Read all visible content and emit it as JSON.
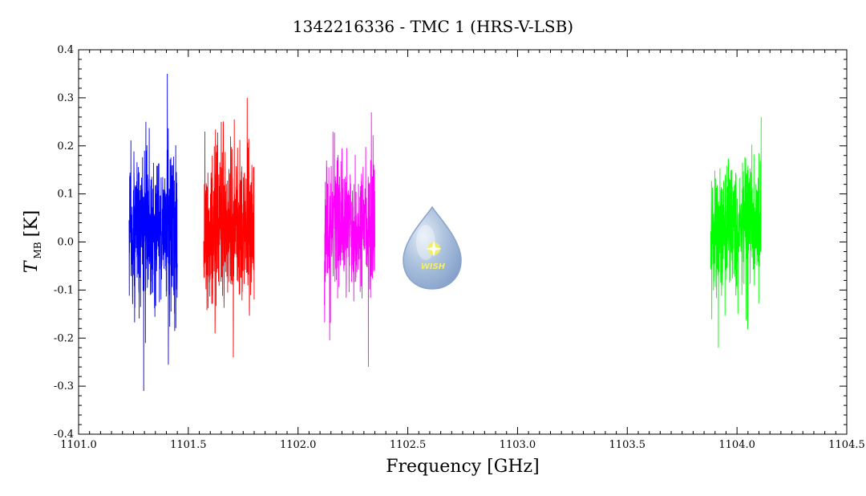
{
  "chart_data": {
    "type": "line",
    "title": "1342216336 - TMC 1 (HRS-V-LSB)",
    "xlabel": "Frequency [GHz]",
    "ylabel_main": "T",
    "ylabel_sub": "MB",
    "ylabel_unit": "[K]",
    "xlim": [
      1101.0,
      1104.5
    ],
    "ylim": [
      -0.4,
      0.4
    ],
    "x_ticks": [
      "1101.0",
      "1101.5",
      "1102.0",
      "1102.5",
      "1103.0",
      "1103.5",
      "1104.0",
      "1104.5"
    ],
    "x_tick_values": [
      1101.0,
      1101.5,
      1102.0,
      1102.5,
      1103.0,
      1103.5,
      1104.0,
      1104.5
    ],
    "y_ticks": [
      "-0.4",
      "-0.3",
      "-0.2",
      "-0.1",
      "0.0",
      "0.1",
      "0.2",
      "0.3",
      "0.4"
    ],
    "y_tick_values": [
      -0.4,
      -0.3,
      -0.2,
      -0.1,
      0.0,
      0.1,
      0.2,
      0.3,
      0.4
    ],
    "grid": false,
    "legend": "none",
    "series": [
      {
        "color": "#0000ff",
        "x_start": 1101.23,
        "x_end": 1101.45,
        "y_center": 0.03,
        "y_amplitude": 0.1,
        "y_max": 0.35,
        "y_min": -0.31
      },
      {
        "color": "#ff0000",
        "x_start": 1101.57,
        "x_end": 1101.8,
        "y_center": 0.03,
        "y_amplitude": 0.1,
        "y_max": 0.3,
        "y_min": -0.24
      },
      {
        "color": "#ff00ff",
        "x_start": 1102.12,
        "x_end": 1102.35,
        "y_center": 0.03,
        "y_amplitude": 0.08,
        "y_max": 0.27,
        "y_min": -0.26
      },
      {
        "color": "#00ff00",
        "x_start": 1103.88,
        "x_end": 1104.11,
        "y_center": 0.03,
        "y_amplitude": 0.08,
        "y_max": 0.26,
        "y_min": -0.22
      }
    ]
  },
  "logo": {
    "text": "WISH"
  }
}
